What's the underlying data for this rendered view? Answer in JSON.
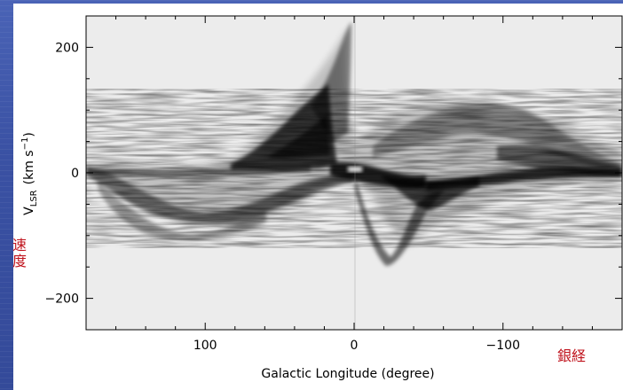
{
  "chart_data": {
    "type": "heatmap",
    "title": "",
    "xlabel": "Galactic Longitude (degree)",
    "ylabel_main": "V",
    "ylabel_sub": "LSR",
    "ylabel_unit_pre": "(km s",
    "ylabel_unit_sup": "−1",
    "ylabel_unit_post": ")",
    "x_reversed": true,
    "xlim": [
      180,
      -180
    ],
    "ylim": [
      -250,
      250
    ],
    "x_ticks": [
      {
        "value": 100,
        "label": "100"
      },
      {
        "value": 0,
        "label": "0"
      },
      {
        "value": -100,
        "label": "−100"
      }
    ],
    "y_ticks": [
      {
        "value": 200,
        "label": "200"
      },
      {
        "value": 0,
        "label": "0"
      },
      {
        "value": -200,
        "label": "−200"
      }
    ],
    "grid": false,
    "colormap": "grayscale (white = low intensity, black = high intensity)",
    "emission_features": [
      {
        "name": "inner-galaxy-positive",
        "points": [
          [
            60,
            0
          ],
          [
            40,
            60
          ],
          [
            25,
            100
          ],
          [
            10,
            180
          ],
          [
            3,
            240
          ]
        ]
      },
      {
        "name": "outer-disk-negative",
        "points": [
          [
            180,
            0
          ],
          [
            150,
            -40
          ],
          [
            120,
            -70
          ],
          [
            90,
            -50
          ],
          [
            60,
            -20
          ]
        ]
      },
      {
        "name": "fourth-quadrant-positive",
        "points": [
          [
            -20,
            40
          ],
          [
            -60,
            80
          ],
          [
            -100,
            120
          ],
          [
            -140,
            60
          ],
          [
            -175,
            0
          ]
        ]
      },
      {
        "name": "central-negative",
        "points": [
          [
            0,
            -50
          ],
          [
            -15,
            -120
          ],
          [
            -30,
            -100
          ],
          [
            -60,
            -40
          ],
          [
            -100,
            -10
          ]
        ]
      }
    ]
  },
  "annotations": {
    "y_axis_japanese": "速度",
    "x_axis_japanese": "銀経"
  },
  "colors": {
    "background": "#3d55a8",
    "panel": "#ffffff",
    "plot_area": "#ececec",
    "emission": "#000000",
    "annotation": "#c0141e"
  }
}
